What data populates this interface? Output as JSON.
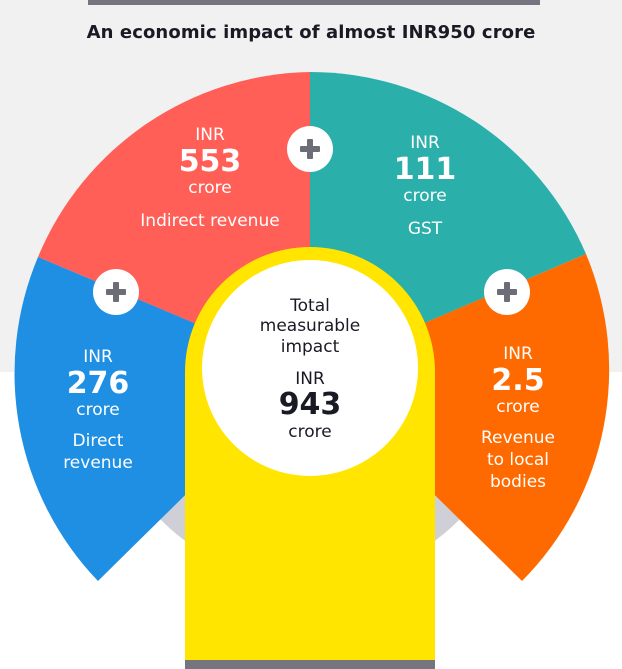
{
  "title": "An economic impact of almost INR950 crore",
  "colors": {
    "indirect": "#ff5f57",
    "gst": "#2aafaa",
    "direct": "#1f8fe4",
    "local": "#ff6a00",
    "center_yellow": "#ffe500",
    "ring_gray": "#cfd0d7",
    "plus_gray": "#6d6d78"
  },
  "segments": {
    "indirect": {
      "currency": "INR",
      "value": "553",
      "unit": "crore",
      "label": "Indirect revenue"
    },
    "gst": {
      "currency": "INR",
      "value": "111",
      "unit": "crore",
      "label": "GST"
    },
    "direct": {
      "currency": "INR",
      "value": "276",
      "unit": "crore",
      "label_line1": "Direct",
      "label_line2": "revenue"
    },
    "local": {
      "currency": "INR",
      "value": "2.5",
      "unit": "crore",
      "label_line1": "Revenue",
      "label_line2": "to local",
      "label_line3": "bodies"
    }
  },
  "total": {
    "label_line1": "Total",
    "label_line2": "measurable",
    "label_line3": "impact",
    "currency": "INR",
    "value": "943",
    "unit": "crore"
  },
  "icons": [
    "plus-icon",
    "plus-icon",
    "plus-icon"
  ]
}
